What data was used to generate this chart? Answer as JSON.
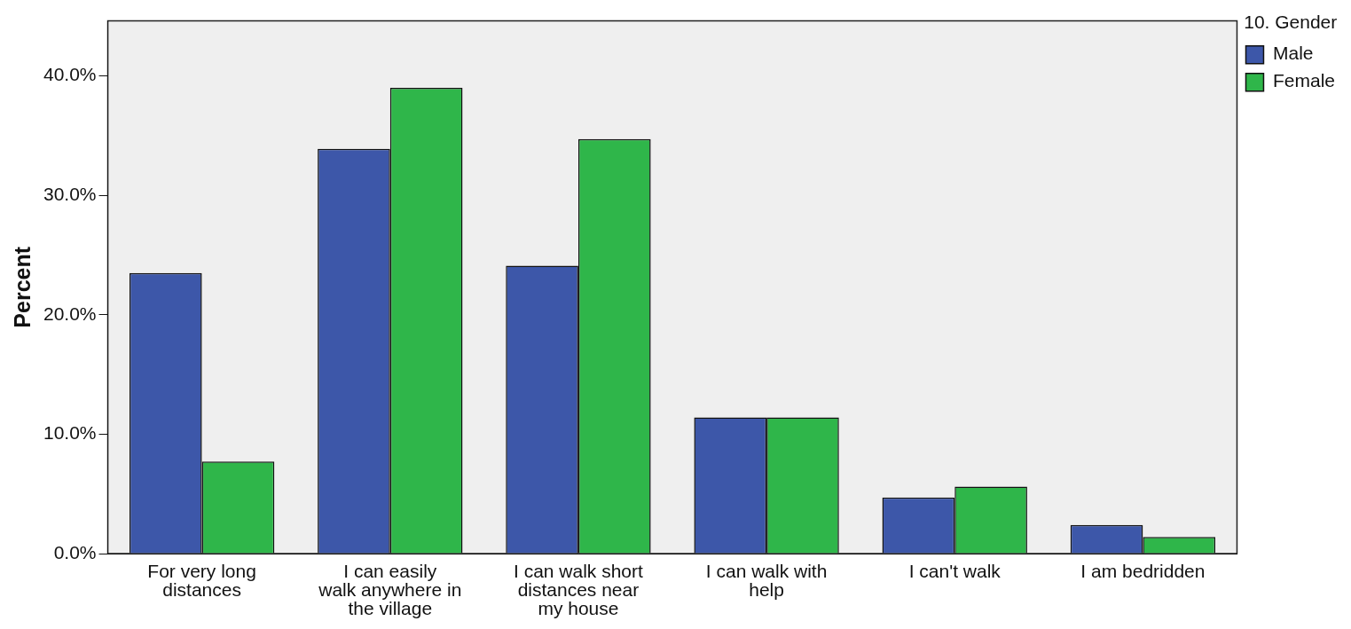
{
  "chart_data": {
    "type": "bar",
    "ylabel": "Percent",
    "legend_title": "10. Gender",
    "categories": [
      "For very long distances",
      "I can easily walk anywhere in the village",
      "I can walk short distances near my house",
      "I can walk with help",
      "I can't walk",
      "I am bedridden"
    ],
    "series": [
      {
        "name": "Male",
        "color": "#3d57a9",
        "values": [
          23.5,
          33.9,
          24.1,
          11.4,
          4.7,
          2.4
        ]
      },
      {
        "name": "Female",
        "color": "#2fb64a",
        "values": [
          7.7,
          39.0,
          34.7,
          11.4,
          5.6,
          1.4
        ]
      }
    ],
    "ylim": [
      0,
      44.6
    ],
    "yticks": [
      {
        "value": 0,
        "label": "0.0%"
      },
      {
        "value": 10,
        "label": "10.0%"
      },
      {
        "value": 20,
        "label": "20.0%"
      },
      {
        "value": 30,
        "label": "30.0%"
      },
      {
        "value": 40,
        "label": "40.0%"
      }
    ],
    "grid": false,
    "legend": "right"
  }
}
